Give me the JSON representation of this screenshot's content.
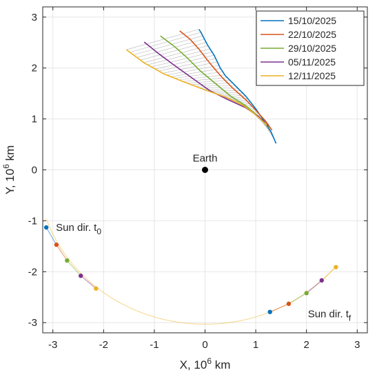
{
  "chart_data": {
    "type": "line",
    "xlabel": {
      "base": "X, 10",
      "exp": "6",
      "unit": " km"
    },
    "ylabel": {
      "base": "Y, 10",
      "exp": "6",
      "unit": " km"
    },
    "xlim": [
      -3.2,
      3.2
    ],
    "ylim": [
      -3.2,
      3.2
    ],
    "xticks": [
      -3,
      -2,
      -1,
      0,
      1,
      2,
      3
    ],
    "yticks": [
      -3,
      -2,
      -1,
      0,
      1,
      2,
      3
    ],
    "grid": true,
    "legend_position": "top-right",
    "series": [
      {
        "name": "15/10/2025",
        "color": "#0072BD",
        "x": [
          1.4,
          1.3,
          1.15,
          1.0,
          0.8,
          0.6,
          0.4,
          0.3,
          0.18,
          0.05,
          -0.03,
          -0.08,
          -0.12
        ],
        "y": [
          0.52,
          0.75,
          0.98,
          1.2,
          1.45,
          1.65,
          1.85,
          2.0,
          2.25,
          2.45,
          2.6,
          2.7,
          2.76
        ]
      },
      {
        "name": "22/10/2025",
        "color": "#D95319",
        "x": [
          1.32,
          1.2,
          1.0,
          0.8,
          0.55,
          0.35,
          0.2,
          0.05,
          -0.12,
          -0.3,
          -0.5
        ],
        "y": [
          0.78,
          0.95,
          1.17,
          1.38,
          1.6,
          1.8,
          1.97,
          2.15,
          2.37,
          2.57,
          2.73
        ]
      },
      {
        "name": "29/10/2025",
        "color": "#77AC30",
        "x": [
          1.27,
          1.05,
          0.8,
          0.5,
          0.2,
          -0.1,
          -0.35,
          -0.6,
          -0.88
        ],
        "y": [
          0.83,
          1.05,
          1.26,
          1.45,
          1.7,
          1.95,
          2.2,
          2.42,
          2.63
        ]
      },
      {
        "name": "05/11/2025",
        "color": "#7E2F8E",
        "x": [
          1.25,
          1.05,
          0.8,
          0.45,
          0.1,
          -0.25,
          -0.6,
          -0.9,
          -1.2
        ],
        "y": [
          0.86,
          1.05,
          1.22,
          1.38,
          1.55,
          1.8,
          2.05,
          2.27,
          2.51
        ]
      },
      {
        "name": "12/11/2025",
        "color": "#EDB120",
        "x": [
          1.22,
          1.0,
          0.75,
          0.4,
          0.0,
          -0.4,
          -0.8,
          -1.2,
          -1.55
        ],
        "y": [
          0.88,
          1.08,
          1.27,
          1.43,
          1.57,
          1.72,
          1.88,
          2.1,
          2.36
        ]
      }
    ],
    "sun_arc": {
      "x0": -3.13,
      "y0": -1.13,
      "t0_end_x": -2.95,
      "t0_end_y": -1.47,
      "center_y": -3.03,
      "points_start": [
        {
          "x": -3.13,
          "y": -1.13,
          "color": "#0072BD"
        },
        {
          "x": -2.93,
          "y": -1.47,
          "color": "#D95319"
        },
        {
          "x": -2.72,
          "y": -1.78,
          "color": "#77AC30"
        },
        {
          "x": -2.45,
          "y": -2.08,
          "color": "#7E2F8E"
        },
        {
          "x": -2.15,
          "y": -2.33,
          "color": "#EDB120"
        }
      ],
      "points_end": [
        {
          "x": 1.28,
          "y": -2.79,
          "color": "#0072BD"
        },
        {
          "x": 1.65,
          "y": -2.63,
          "color": "#D95319"
        },
        {
          "x": 2.0,
          "y": -2.42,
          "color": "#77AC30"
        },
        {
          "x": 2.3,
          "y": -2.17,
          "color": "#7E2F8E"
        },
        {
          "x": 2.58,
          "y": -1.91,
          "color": "#EDB120"
        }
      ]
    },
    "earth": {
      "x": 0,
      "y": 0,
      "label": "Earth"
    },
    "annotations": {
      "sun_t0_base": "Sun dir. t",
      "sun_t0_sub": "0",
      "sun_tf_base": "Sun dir. t",
      "sun_tf_sub": "f"
    }
  }
}
